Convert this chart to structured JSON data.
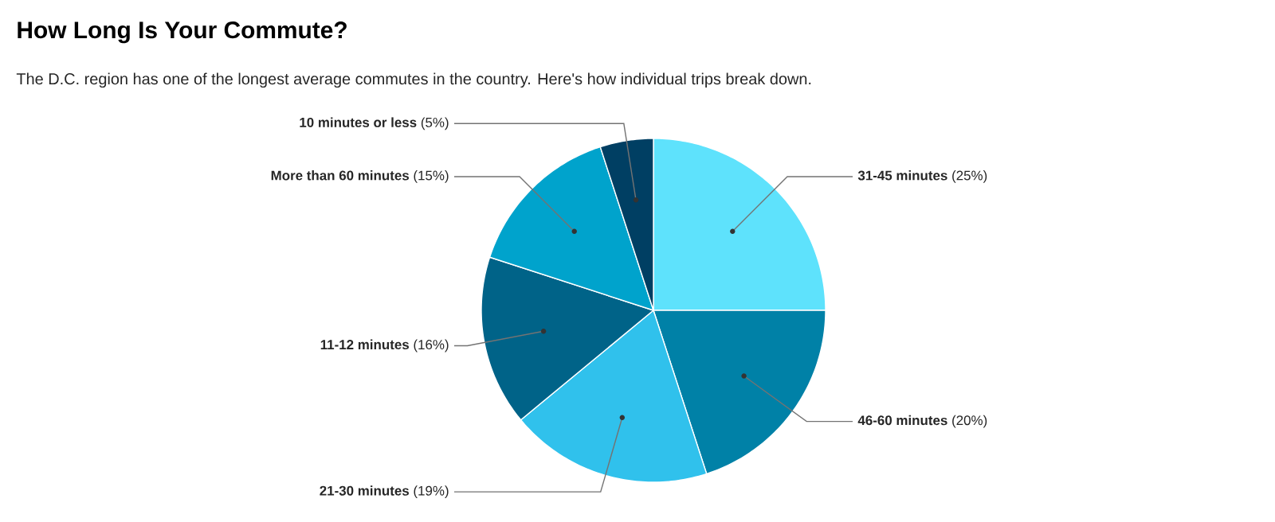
{
  "chart_data": {
    "type": "pie",
    "title": "How Long Is Your Commute?",
    "subtitle": "The D.C. region has one of the longest average commutes in the country. Here's how individual trips break down.",
    "categories": [
      "31-45 minutes",
      "46-60 minutes",
      "21-30 minutes",
      "11-12 minutes",
      "More than 60 minutes",
      "10 minutes or less"
    ],
    "values": [
      25,
      20,
      19,
      16,
      15,
      5
    ],
    "value_labels": [
      "(25%)",
      "(20%)",
      "(19%)",
      "(16%)",
      "(15%)",
      "(5%)"
    ],
    "colors": [
      "#5ee2fc",
      "#0081a7",
      "#30c1ec",
      "#006388",
      "#00a3cc",
      "#003f63"
    ]
  }
}
